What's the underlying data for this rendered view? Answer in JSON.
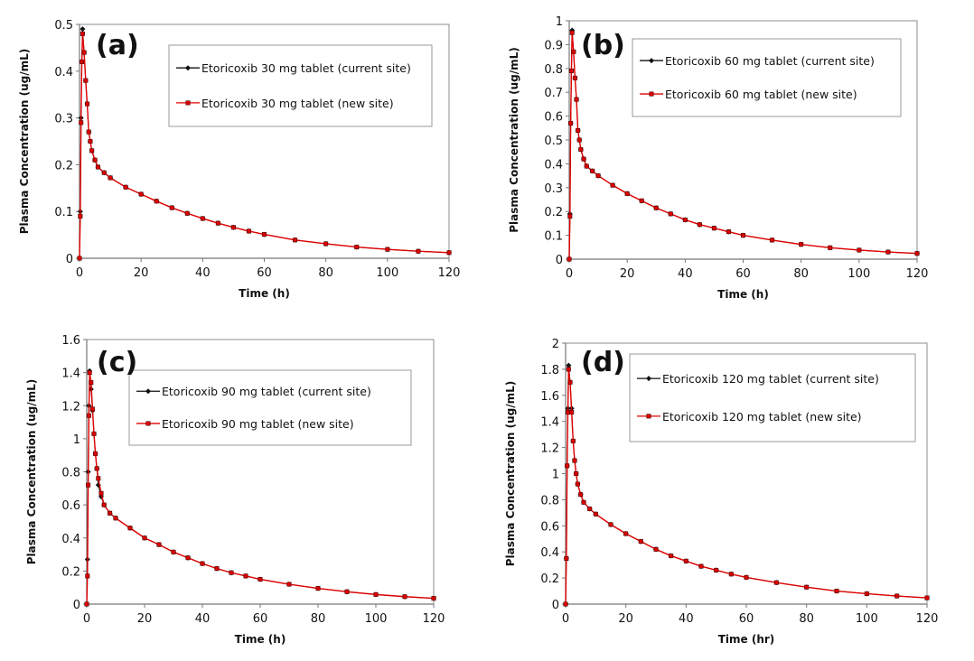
{
  "colors": {
    "current_site": "#111111",
    "new_site": "#e00000",
    "frame": "#8c8c8c"
  },
  "chart_data": [
    {
      "type": "line",
      "panel_label": "(a)",
      "xlabel": "Time (h)",
      "ylabel": "Plasma Concentration (ug/mL)",
      "xlim": [
        0,
        120
      ],
      "ylim": [
        0,
        0.5
      ],
      "xticks": [
        0,
        20,
        40,
        60,
        80,
        100,
        120
      ],
      "yticks": [
        0,
        0.1,
        0.2,
        0.3,
        0.4,
        0.5
      ],
      "grid": false,
      "legend": "top-right",
      "x": [
        0,
        0.25,
        0.5,
        0.75,
        1,
        1.5,
        2,
        2.5,
        3,
        3.5,
        4,
        5,
        6,
        8,
        10,
        15,
        20,
        25,
        30,
        35,
        40,
        45,
        50,
        55,
        60,
        70,
        80,
        90,
        100,
        110,
        120
      ],
      "series": [
        {
          "name": "Etoricoxib 30 mg tablet (current site)",
          "marker": "diamond",
          "values": [
            0,
            0.1,
            0.3,
            0.42,
            0.49,
            0.44,
            0.38,
            0.33,
            0.27,
            0.25,
            0.23,
            0.21,
            0.195,
            0.183,
            0.172,
            0.152,
            0.137,
            0.122,
            0.108,
            0.096,
            0.085,
            0.075,
            0.066,
            0.058,
            0.051,
            0.039,
            0.031,
            0.024,
            0.019,
            0.015,
            0.012
          ]
        },
        {
          "name": "Etoricoxib 30 mg tablet (new site)",
          "marker": "square",
          "values": [
            0,
            0.09,
            0.29,
            0.42,
            0.48,
            0.44,
            0.38,
            0.33,
            0.27,
            0.25,
            0.23,
            0.21,
            0.195,
            0.183,
            0.172,
            0.152,
            0.137,
            0.122,
            0.108,
            0.096,
            0.085,
            0.075,
            0.066,
            0.058,
            0.051,
            0.039,
            0.031,
            0.024,
            0.019,
            0.015,
            0.012
          ]
        }
      ]
    },
    {
      "type": "line",
      "panel_label": "(b)",
      "xlabel": "Time (h)",
      "ylabel": "Plasma Concentration (ug/mL)",
      "xlim": [
        0,
        120
      ],
      "ylim": [
        0,
        1
      ],
      "xticks": [
        0,
        20,
        40,
        60,
        80,
        100,
        120
      ],
      "yticks": [
        0,
        0.1,
        0.2,
        0.3,
        0.4,
        0.5,
        0.6,
        0.7,
        0.8,
        0.9,
        1
      ],
      "grid": false,
      "legend": "top-right",
      "x": [
        0,
        0.25,
        0.5,
        0.75,
        1,
        1.5,
        2,
        2.5,
        3,
        3.5,
        4,
        5,
        6,
        8,
        10,
        15,
        20,
        25,
        30,
        35,
        40,
        45,
        50,
        55,
        60,
        70,
        80,
        90,
        100,
        110,
        120
      ],
      "series": [
        {
          "name": "Etoricoxib 60 mg tablet (current site)",
          "marker": "diamond",
          "values": [
            0,
            0.19,
            0.57,
            0.79,
            0.96,
            0.87,
            0.76,
            0.67,
            0.54,
            0.5,
            0.46,
            0.42,
            0.39,
            0.37,
            0.35,
            0.31,
            0.275,
            0.245,
            0.215,
            0.19,
            0.165,
            0.145,
            0.13,
            0.115,
            0.1,
            0.08,
            0.062,
            0.048,
            0.038,
            0.03,
            0.024
          ]
        },
        {
          "name": "Etoricoxib 60 mg tablet (new site)",
          "marker": "square",
          "values": [
            0,
            0.18,
            0.57,
            0.79,
            0.95,
            0.87,
            0.76,
            0.67,
            0.54,
            0.5,
            0.46,
            0.42,
            0.39,
            0.37,
            0.35,
            0.31,
            0.275,
            0.245,
            0.215,
            0.19,
            0.165,
            0.145,
            0.13,
            0.115,
            0.1,
            0.08,
            0.062,
            0.048,
            0.038,
            0.03,
            0.024
          ]
        }
      ]
    },
    {
      "type": "line",
      "panel_label": "(c)",
      "xlabel": "Time (h)",
      "ylabel": "Plasma Concentration (ug/mL)",
      "xlim": [
        0,
        120
      ],
      "ylim": [
        0,
        1.6
      ],
      "xticks": [
        0,
        20,
        40,
        60,
        80,
        100,
        120
      ],
      "yticks": [
        0,
        0.2,
        0.4,
        0.6,
        0.8,
        1,
        1.2,
        1.4,
        1.6
      ],
      "grid": false,
      "legend": "top-right",
      "x": [
        0,
        0.25,
        0.5,
        0.75,
        1,
        1.5,
        2,
        2.5,
        3,
        3.5,
        4,
        5,
        6,
        8,
        10,
        15,
        20,
        25,
        30,
        35,
        40,
        45,
        50,
        55,
        60,
        70,
        80,
        90,
        100,
        110,
        120
      ],
      "series": [
        {
          "name": "Etoricoxib 90 mg tablet (current site)",
          "marker": "diamond",
          "values": [
            0,
            0.27,
            0.8,
            1.2,
            1.41,
            1.3,
            1.17,
            1.03,
            0.91,
            0.82,
            0.72,
            0.65,
            0.6,
            0.55,
            0.52,
            0.46,
            0.4,
            0.36,
            0.315,
            0.28,
            0.245,
            0.215,
            0.19,
            0.17,
            0.15,
            0.12,
            0.095,
            0.075,
            0.058,
            0.045,
            0.035
          ]
        },
        {
          "name": "Etoricoxib 90 mg tablet (new site)",
          "marker": "square",
          "values": [
            0,
            0.17,
            0.72,
            1.14,
            1.4,
            1.34,
            1.18,
            1.03,
            0.91,
            0.82,
            0.76,
            0.67,
            0.6,
            0.55,
            0.52,
            0.46,
            0.4,
            0.36,
            0.315,
            0.28,
            0.245,
            0.215,
            0.19,
            0.17,
            0.15,
            0.12,
            0.095,
            0.075,
            0.058,
            0.045,
            0.035
          ]
        }
      ]
    },
    {
      "type": "line",
      "panel_label": "(d)",
      "xlabel": "Time (hr)",
      "ylabel": "Plasma Concentration (ug/mL)",
      "xlim": [
        0,
        120
      ],
      "ylim": [
        0,
        2
      ],
      "xticks": [
        0,
        20,
        40,
        60,
        80,
        100,
        120
      ],
      "yticks": [
        0,
        0.2,
        0.4,
        0.6,
        0.8,
        1,
        1.2,
        1.4,
        1.6,
        1.8,
        2
      ],
      "grid": false,
      "legend": "top-right",
      "x": [
        0,
        0.25,
        0.5,
        0.75,
        1,
        1.5,
        2,
        2.5,
        3,
        3.5,
        4,
        5,
        6,
        8,
        10,
        15,
        20,
        25,
        30,
        35,
        40,
        45,
        50,
        55,
        60,
        70,
        80,
        90,
        100,
        110,
        120
      ],
      "series": [
        {
          "name": "Etoricoxib 120 mg tablet (current site)",
          "marker": "diamond",
          "values": [
            0,
            0.35,
            1.06,
            1.5,
            1.83,
            1.7,
            1.5,
            1.25,
            1.1,
            1.0,
            0.92,
            0.84,
            0.78,
            0.73,
            0.69,
            0.61,
            0.54,
            0.48,
            0.42,
            0.37,
            0.33,
            0.29,
            0.26,
            0.23,
            0.205,
            0.165,
            0.13,
            0.1,
            0.08,
            0.062,
            0.048
          ]
        },
        {
          "name": "Etoricoxib 120 mg tablet (new site)",
          "marker": "square",
          "values": [
            0,
            0.35,
            1.06,
            1.47,
            1.8,
            1.7,
            1.47,
            1.25,
            1.1,
            1.0,
            0.92,
            0.84,
            0.78,
            0.73,
            0.69,
            0.61,
            0.54,
            0.48,
            0.42,
            0.37,
            0.33,
            0.29,
            0.26,
            0.23,
            0.205,
            0.165,
            0.13,
            0.1,
            0.08,
            0.062,
            0.048
          ]
        }
      ]
    }
  ]
}
